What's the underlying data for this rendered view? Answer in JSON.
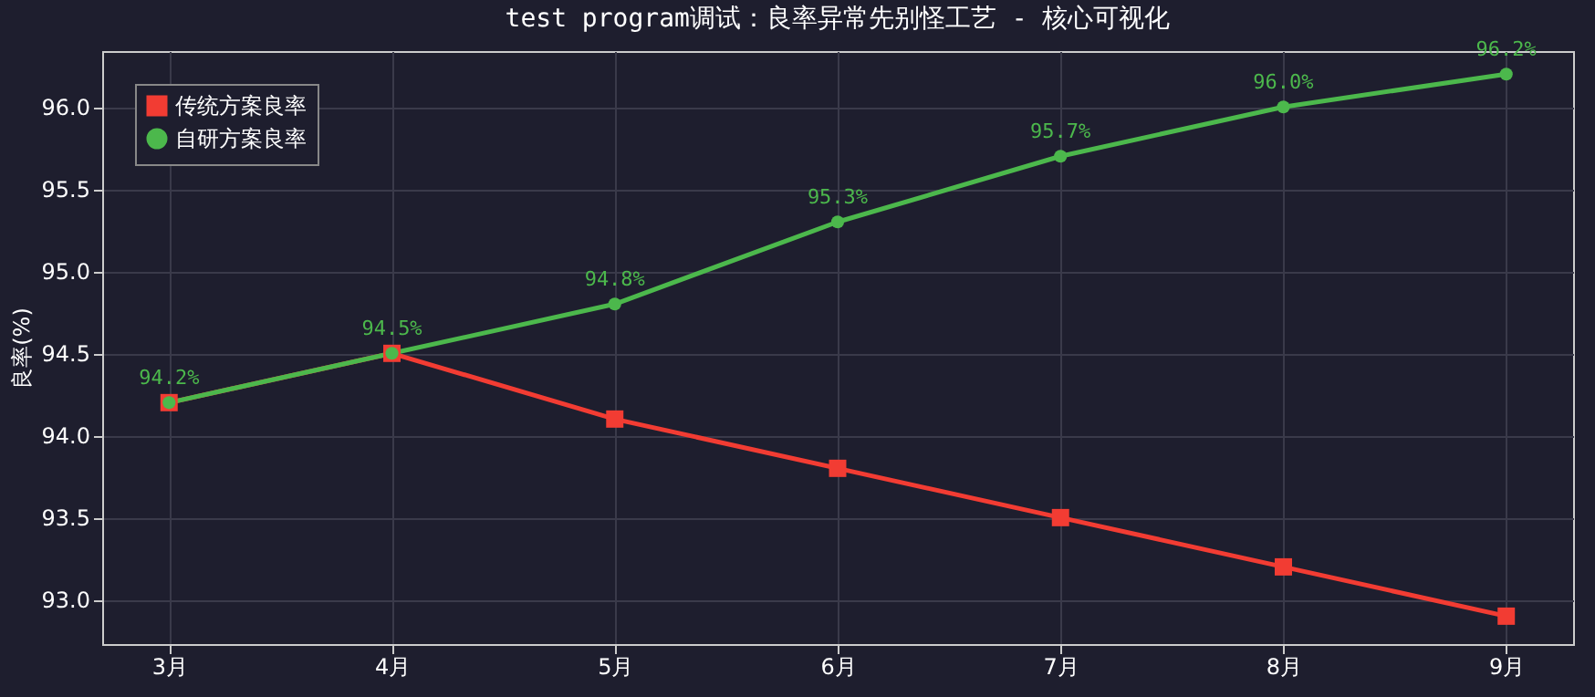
{
  "chart_data": {
    "type": "line",
    "title": "test program调试：良率异常先别怪工艺 - 核心可视化",
    "ylabel": "良率(%)",
    "categories": [
      "3月",
      "4月",
      "5月",
      "6月",
      "7月",
      "8月",
      "9月"
    ],
    "series": [
      {
        "name": "传统方案良率",
        "color": "#f23c33",
        "marker": "square",
        "values": [
          94.2,
          94.5,
          94.1,
          93.8,
          93.5,
          93.2,
          92.9
        ]
      },
      {
        "name": "自研方案良率",
        "color": "#4cb84c",
        "marker": "circle",
        "values": [
          94.2,
          94.5,
          94.8,
          95.3,
          95.7,
          96.0,
          96.2
        ],
        "value_labels": [
          "94.2%",
          "94.5%",
          "94.8%",
          "95.3%",
          "95.7%",
          "96.0%",
          "96.2%"
        ]
      }
    ],
    "ylim": [
      92.73,
      96.34
    ],
    "yticks": [
      {
        "value": 93,
        "label": "93.0"
      },
      {
        "value": 93.5,
        "label": "93.5"
      },
      {
        "value": 94,
        "label": "94.0"
      },
      {
        "value": 94.5,
        "label": "94.5"
      },
      {
        "value": 95,
        "label": "95.0"
      },
      {
        "value": 95.5,
        "label": "95.5"
      },
      {
        "value": 96,
        "label": "96.0"
      }
    ],
    "grid": true,
    "legend": "top left",
    "line_style": "solid"
  }
}
